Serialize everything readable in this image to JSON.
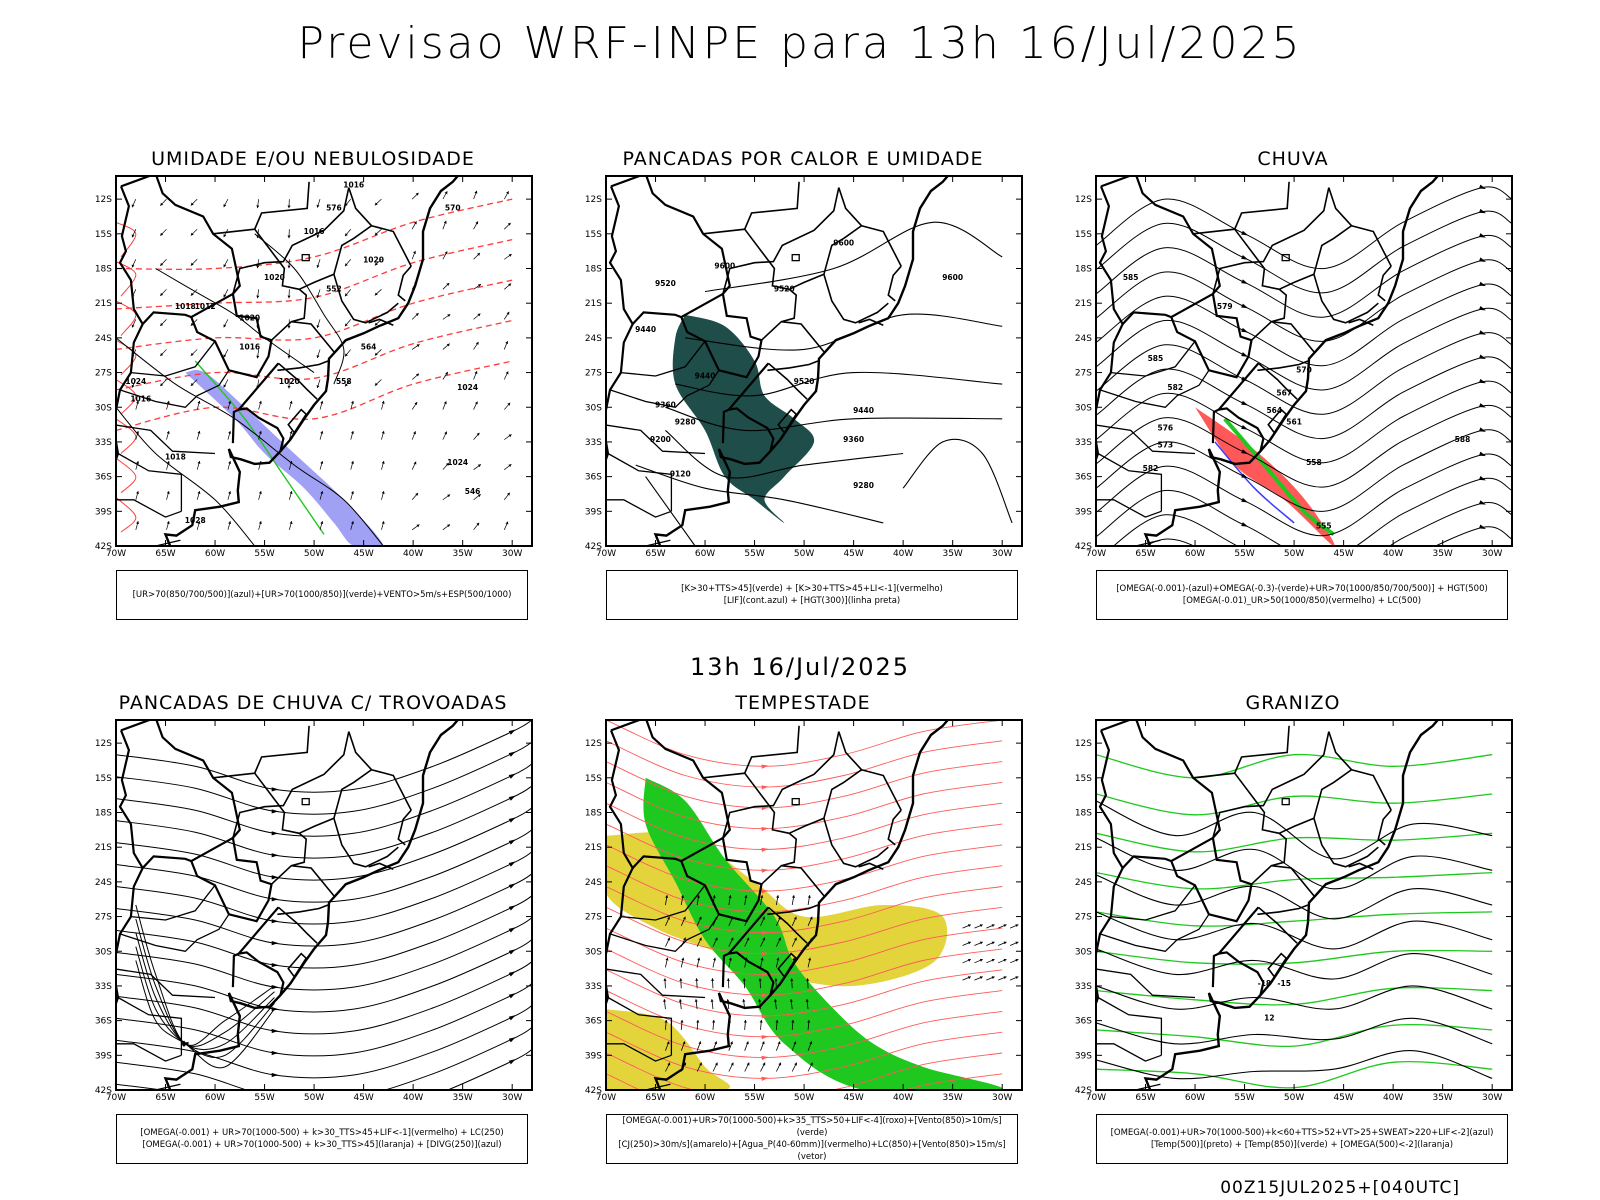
{
  "title": "Previsao WRF-INPE  para 13h 16/Jul/2025",
  "subtitle": "13h 16/Jul/2025",
  "footer": "00Z15JUL2025+[040UTC]",
  "axes": {
    "lat_labels": [
      "12S",
      "15S",
      "18S",
      "21S",
      "24S",
      "27S",
      "30S",
      "33S",
      "36S",
      "39S",
      "42S"
    ],
    "lon_labels": [
      "70W",
      "65W",
      "60W",
      "55W",
      "50W",
      "45W",
      "40W",
      "35W",
      "30W"
    ]
  },
  "colors": {
    "blue": "#3b3bff",
    "green": "#1ec81e",
    "red": "#ff3b3b",
    "darkgreen": "#1f4d4a",
    "orange": "#f08a24",
    "yellow": "#e4d43c",
    "purple": "#8080f0"
  },
  "panels": [
    {
      "id": "umidade",
      "title": "UMIDADE E/OU NEBULOSIDADE",
      "legend": [
        "[UR>70(850/700/500)](azul)+[UR>70(1000/850)](verde)+VENTO>5m/s+ESP(500/1000)"
      ],
      "labels": [
        "1016",
        "1016",
        "1020",
        "1020",
        "1016",
        "1020",
        "1020",
        "570",
        "576",
        "564",
        "558",
        "552",
        "1024",
        "1024",
        "546",
        "1028",
        "1018",
        "1012",
        "1024",
        "1018",
        "1016"
      ]
    },
    {
      "id": "pancadas-calor",
      "title": "PANCADAS POR CALOR E UMIDADE",
      "legend": [
        "[K>30+TTS>45](verde) + [K>30+TTS>45+LI<-1](vermelho)",
        "[LIF](cont.azul) + [HGT(300)](linha preta)"
      ],
      "labels": [
        "9600",
        "9600",
        "9520",
        "9520",
        "9600",
        "9440",
        "9440",
        "9360",
        "9280",
        "9200",
        "9120",
        "9440",
        "9360",
        "9280",
        "9520"
      ]
    },
    {
      "id": "chuva",
      "title": "CHUVA",
      "legend": [
        "[OMEGA(-0.001)-(azul)+OMEGA(-0.3)-(verde)+UR>70(1000/850/700/500)] + HGT(500)",
        "[OMEGA(-0.01)_UR>50(1000/850)(vermelho) + LC(500)"
      ],
      "labels": [
        "585",
        "582",
        "579",
        "576",
        "573",
        "570",
        "567",
        "564",
        "561",
        "558",
        "555",
        "588",
        "585",
        "582"
      ]
    },
    {
      "id": "pancadas-trovoadas",
      "title": "PANCADAS DE CHUVA C/ TROVOADAS",
      "legend": [
        "[OMEGA(-0.001) + UR>70(1000-500) + k>30_TTS>45+LIF<-1](vermelho) + LC(250)",
        "[OMEGA(-0.001) + UR>70(1000-500) + k>30_TTS>45](laranja) + [DIVG(250)](azul)"
      ],
      "labels": []
    },
    {
      "id": "tempestade",
      "title": "TEMPESTADE",
      "legend": [
        "[OMEGA(-0.001)+UR>70(1000-500)+k>35_TTS>50+LIF<-4](roxo)+[Vento(850)>10m/s](verde)",
        "[CJ(250)>30m/s](amarelo)+[Agua_P(40-60mm)](vermelho)+LC(850)+[Vento(850)>15m/s](vetor)"
      ],
      "labels": []
    },
    {
      "id": "granizo",
      "title": "GRANIZO",
      "legend": [
        "[OMEGA(-0.001)+UR>70(1000-500)+k<60+TTS>52+VT>25+SWEAT>220+LIF<-2](azul)",
        "[Temp(500)](preto) + [Temp(850)](verde) + [OMEGA(500)<-2](laranja)"
      ],
      "labels": [
        "-18",
        "-15",
        "12"
      ]
    }
  ]
}
